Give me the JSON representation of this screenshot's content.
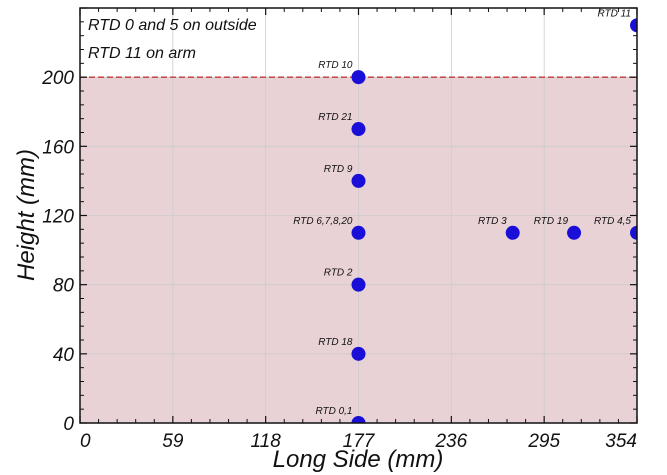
{
  "chart_data": {
    "type": "scatter",
    "xlabel": "Long Side (mm)",
    "ylabel": "Height (mm)",
    "xlim": [
      0,
      354
    ],
    "ylim": [
      0,
      240
    ],
    "x_ticks": [
      0,
      59,
      118,
      177,
      236,
      295,
      354
    ],
    "y_ticks": [
      0,
      40,
      80,
      120,
      160,
      200
    ],
    "grid": true,
    "marker_color": "#1a0fd6",
    "shaded_region": {
      "y_from": 0,
      "y_to": 200,
      "fill": "#e8d2d5",
      "line_color": "#c0393b"
    },
    "annotations": [
      "RTD 0 and 5 on outside",
      "RTD 11 on arm"
    ],
    "points": [
      {
        "x": 177,
        "y": 0,
        "label": "RTD 0,1"
      },
      {
        "x": 177,
        "y": 40,
        "label": "RTD 18"
      },
      {
        "x": 177,
        "y": 80,
        "label": "RTD 2"
      },
      {
        "x": 177,
        "y": 110,
        "label": "RTD 6,7,8,20"
      },
      {
        "x": 177,
        "y": 140,
        "label": "RTD 9"
      },
      {
        "x": 177,
        "y": 170,
        "label": "RTD 21"
      },
      {
        "x": 177,
        "y": 200,
        "label": "RTD 10"
      },
      {
        "x": 275,
        "y": 110,
        "label": "RTD 3"
      },
      {
        "x": 314,
        "y": 110,
        "label": "RTD 19"
      },
      {
        "x": 354,
        "y": 110,
        "label": "RTD 4,5"
      },
      {
        "x": 354,
        "y": 230,
        "label": "RTD 11"
      }
    ]
  }
}
